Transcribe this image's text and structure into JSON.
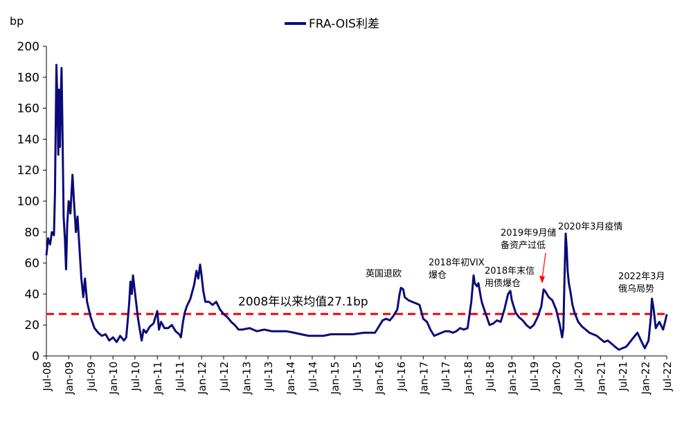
{
  "chart_data": {
    "type": "line",
    "unit": "bp",
    "ylim": [
      0,
      200
    ],
    "yticks": [
      0,
      20,
      40,
      60,
      80,
      100,
      120,
      140,
      160,
      180,
      200
    ],
    "xlim": [
      "2008-07",
      "2022-07"
    ],
    "xticks": [
      "Jul-08",
      "Jan-09",
      "Jul-09",
      "Jan-10",
      "Jul-10",
      "Jan-11",
      "Jul-11",
      "Jan-12",
      "Jul-12",
      "Jan-13",
      "Jul-13",
      "Jan-14",
      "Jul-14",
      "Jan-15",
      "Jul-15",
      "Jan-16",
      "Jul-16",
      "Jan-17",
      "Jul-17",
      "Jan-18",
      "Jul-18",
      "Jan-19",
      "Jul-19",
      "Jan-20",
      "Jul-20",
      "Jan-21",
      "Jul-21",
      "Jan-22",
      "Jul-22"
    ],
    "grid": false,
    "legend_position": "top-center",
    "series": [
      {
        "name": "FRA-OIS利差",
        "color": "#0a0a78",
        "points": [
          [
            "2008-07-01",
            65
          ],
          [
            "2008-07-15",
            76
          ],
          [
            "2008-08-01",
            72
          ],
          [
            "2008-08-15",
            80
          ],
          [
            "2008-09-01",
            78
          ],
          [
            "2008-09-10",
            105
          ],
          [
            "2008-09-16",
            150
          ],
          [
            "2008-09-22",
            188
          ],
          [
            "2008-10-01",
            160
          ],
          [
            "2008-10-07",
            130
          ],
          [
            "2008-10-13",
            172
          ],
          [
            "2008-10-20",
            135
          ],
          [
            "2008-10-27",
            165
          ],
          [
            "2008-11-03",
            186
          ],
          [
            "2008-11-10",
            150
          ],
          [
            "2008-11-20",
            90
          ],
          [
            "2008-12-01",
            75
          ],
          [
            "2008-12-10",
            56
          ],
          [
            "2008-12-20",
            85
          ],
          [
            "2009-01-01",
            100
          ],
          [
            "2009-01-15",
            92
          ],
          [
            "2009-02-01",
            117
          ],
          [
            "2009-02-15",
            98
          ],
          [
            "2009-03-01",
            80
          ],
          [
            "2009-03-15",
            90
          ],
          [
            "2009-04-01",
            68
          ],
          [
            "2009-04-15",
            50
          ],
          [
            "2009-05-01",
            38
          ],
          [
            "2009-05-15",
            50
          ],
          [
            "2009-06-01",
            35
          ],
          [
            "2009-07-01",
            25
          ],
          [
            "2009-08-01",
            18
          ],
          [
            "2009-09-01",
            15
          ],
          [
            "2009-10-01",
            13
          ],
          [
            "2009-11-01",
            14
          ],
          [
            "2009-12-01",
            10
          ],
          [
            "2010-01-01",
            12
          ],
          [
            "2010-02-01",
            9
          ],
          [
            "2010-03-01",
            13
          ],
          [
            "2010-04-01",
            10
          ],
          [
            "2010-04-20",
            12
          ],
          [
            "2010-05-05",
            25
          ],
          [
            "2010-05-15",
            35
          ],
          [
            "2010-05-25",
            48
          ],
          [
            "2010-06-05",
            40
          ],
          [
            "2010-06-15",
            52
          ],
          [
            "2010-06-25",
            45
          ],
          [
            "2010-07-10",
            35
          ],
          [
            "2010-07-25",
            25
          ],
          [
            "2010-08-10",
            17
          ],
          [
            "2010-08-25",
            10
          ],
          [
            "2010-09-10",
            17
          ],
          [
            "2010-10-01",
            15
          ],
          [
            "2010-11-01",
            19
          ],
          [
            "2010-12-01",
            21
          ],
          [
            "2011-01-01",
            29
          ],
          [
            "2011-01-15",
            17
          ],
          [
            "2011-02-01",
            22
          ],
          [
            "2011-03-01",
            18
          ],
          [
            "2011-04-01",
            18
          ],
          [
            "2011-05-01",
            20
          ],
          [
            "2011-06-01",
            16
          ],
          [
            "2011-07-01",
            14
          ],
          [
            "2011-07-15",
            12
          ],
          [
            "2011-08-01",
            22
          ],
          [
            "2011-08-15",
            28
          ],
          [
            "2011-09-01",
            32
          ],
          [
            "2011-10-01",
            37
          ],
          [
            "2011-11-01",
            46
          ],
          [
            "2011-11-20",
            55
          ],
          [
            "2011-12-05",
            50
          ],
          [
            "2011-12-20",
            59
          ],
          [
            "2012-01-01",
            52
          ],
          [
            "2012-01-15",
            42
          ],
          [
            "2012-02-01",
            35
          ],
          [
            "2012-03-01",
            35
          ],
          [
            "2012-04-01",
            33
          ],
          [
            "2012-05-01",
            35
          ],
          [
            "2012-06-01",
            30
          ],
          [
            "2012-07-01",
            27
          ],
          [
            "2012-08-01",
            25
          ],
          [
            "2012-09-01",
            22
          ],
          [
            "2012-10-01",
            20
          ],
          [
            "2012-11-01",
            17
          ],
          [
            "2012-12-01",
            17
          ],
          [
            "2013-02-01",
            18
          ],
          [
            "2013-04-01",
            16
          ],
          [
            "2013-06-01",
            17
          ],
          [
            "2013-08-01",
            16
          ],
          [
            "2013-10-01",
            16
          ],
          [
            "2013-12-01",
            16
          ],
          [
            "2014-02-01",
            15
          ],
          [
            "2014-04-01",
            14
          ],
          [
            "2014-06-01",
            13
          ],
          [
            "2014-08-01",
            13
          ],
          [
            "2014-10-01",
            13
          ],
          [
            "2014-12-01",
            14
          ],
          [
            "2015-03-01",
            14
          ],
          [
            "2015-06-01",
            14
          ],
          [
            "2015-09-01",
            15
          ],
          [
            "2015-12-01",
            15
          ],
          [
            "2016-01-01",
            19
          ],
          [
            "2016-02-01",
            23
          ],
          [
            "2016-03-01",
            24
          ],
          [
            "2016-04-01",
            23
          ],
          [
            "2016-05-01",
            26
          ],
          [
            "2016-06-01",
            30
          ],
          [
            "2016-06-20",
            40
          ],
          [
            "2016-07-01",
            44
          ],
          [
            "2016-07-20",
            43
          ],
          [
            "2016-08-01",
            38
          ],
          [
            "2016-09-01",
            36
          ],
          [
            "2016-10-01",
            35
          ],
          [
            "2016-11-01",
            34
          ],
          [
            "2016-12-01",
            33
          ],
          [
            "2017-01-01",
            24
          ],
          [
            "2017-02-01",
            22
          ],
          [
            "2017-03-01",
            17
          ],
          [
            "2017-04-01",
            13
          ],
          [
            "2017-05-01",
            14
          ],
          [
            "2017-06-01",
            15
          ],
          [
            "2017-07-01",
            16
          ],
          [
            "2017-08-01",
            16
          ],
          [
            "2017-09-01",
            15
          ],
          [
            "2017-10-01",
            16
          ],
          [
            "2017-11-01",
            18
          ],
          [
            "2017-12-01",
            17
          ],
          [
            "2018-01-01",
            18
          ],
          [
            "2018-02-01",
            35
          ],
          [
            "2018-02-20",
            52
          ],
          [
            "2018-03-01",
            47
          ],
          [
            "2018-03-20",
            45
          ],
          [
            "2018-04-01",
            47
          ],
          [
            "2018-04-20",
            38
          ],
          [
            "2018-05-01",
            34
          ],
          [
            "2018-06-01",
            27
          ],
          [
            "2018-07-01",
            20
          ],
          [
            "2018-08-01",
            21
          ],
          [
            "2018-09-01",
            23
          ],
          [
            "2018-10-01",
            22
          ],
          [
            "2018-11-01",
            30
          ],
          [
            "2018-12-01",
            40
          ],
          [
            "2018-12-20",
            42
          ],
          [
            "2019-01-01",
            36
          ],
          [
            "2019-02-01",
            28
          ],
          [
            "2019-03-01",
            25
          ],
          [
            "2019-04-01",
            23
          ],
          [
            "2019-05-01",
            20
          ],
          [
            "2019-06-01",
            18
          ],
          [
            "2019-07-01",
            20
          ],
          [
            "2019-08-01",
            25
          ],
          [
            "2019-09-01",
            32
          ],
          [
            "2019-09-20",
            43
          ],
          [
            "2019-10-01",
            42
          ],
          [
            "2019-11-01",
            38
          ],
          [
            "2019-12-01",
            36
          ],
          [
            "2020-01-01",
            30
          ],
          [
            "2020-02-01",
            20
          ],
          [
            "2020-02-20",
            12
          ],
          [
            "2020-03-01",
            18
          ],
          [
            "2020-03-10",
            50
          ],
          [
            "2020-03-20",
            79
          ],
          [
            "2020-03-28",
            70
          ],
          [
            "2020-04-05",
            55
          ],
          [
            "2020-04-15",
            47
          ],
          [
            "2020-05-01",
            40
          ],
          [
            "2020-05-15",
            33
          ],
          [
            "2020-06-01",
            28
          ],
          [
            "2020-07-01",
            22
          ],
          [
            "2020-08-01",
            19
          ],
          [
            "2020-09-01",
            17
          ],
          [
            "2020-10-01",
            15
          ],
          [
            "2020-11-01",
            14
          ],
          [
            "2020-12-01",
            13
          ],
          [
            "2021-01-01",
            11
          ],
          [
            "2021-02-01",
            9
          ],
          [
            "2021-03-01",
            10
          ],
          [
            "2021-04-01",
            8
          ],
          [
            "2021-05-01",
            6
          ],
          [
            "2021-06-01",
            4
          ],
          [
            "2021-07-01",
            5
          ],
          [
            "2021-08-01",
            6
          ],
          [
            "2021-09-01",
            9
          ],
          [
            "2021-10-01",
            12
          ],
          [
            "2021-11-01",
            15
          ],
          [
            "2021-12-01",
            10
          ],
          [
            "2022-01-01",
            5
          ],
          [
            "2022-02-01",
            10
          ],
          [
            "2022-02-20",
            25
          ],
          [
            "2022-03-01",
            37
          ],
          [
            "2022-03-15",
            30
          ],
          [
            "2022-04-01",
            18
          ],
          [
            "2022-05-01",
            22
          ],
          [
            "2022-06-01",
            17
          ],
          [
            "2022-06-20",
            23
          ],
          [
            "2022-07-01",
            27
          ]
        ]
      }
    ],
    "reference_line": {
      "value": 27.1,
      "label": "2008年以来均值27.1bp",
      "color": "#ff0000",
      "style": "dashed"
    },
    "annotations": [
      {
        "lines": [
          "英国退欧"
        ]
      },
      {
        "lines": [
          "2018年初VIX",
          "爆仓"
        ]
      },
      {
        "lines": [
          "2018年末信",
          "用债爆仓"
        ]
      },
      {
        "lines": [
          "2019年9月储",
          "备资产过低"
        ]
      },
      {
        "lines": [
          "2020年3月疫情"
        ]
      },
      {
        "lines": [
          "2022年3月",
          "俄乌局势"
        ]
      }
    ]
  }
}
